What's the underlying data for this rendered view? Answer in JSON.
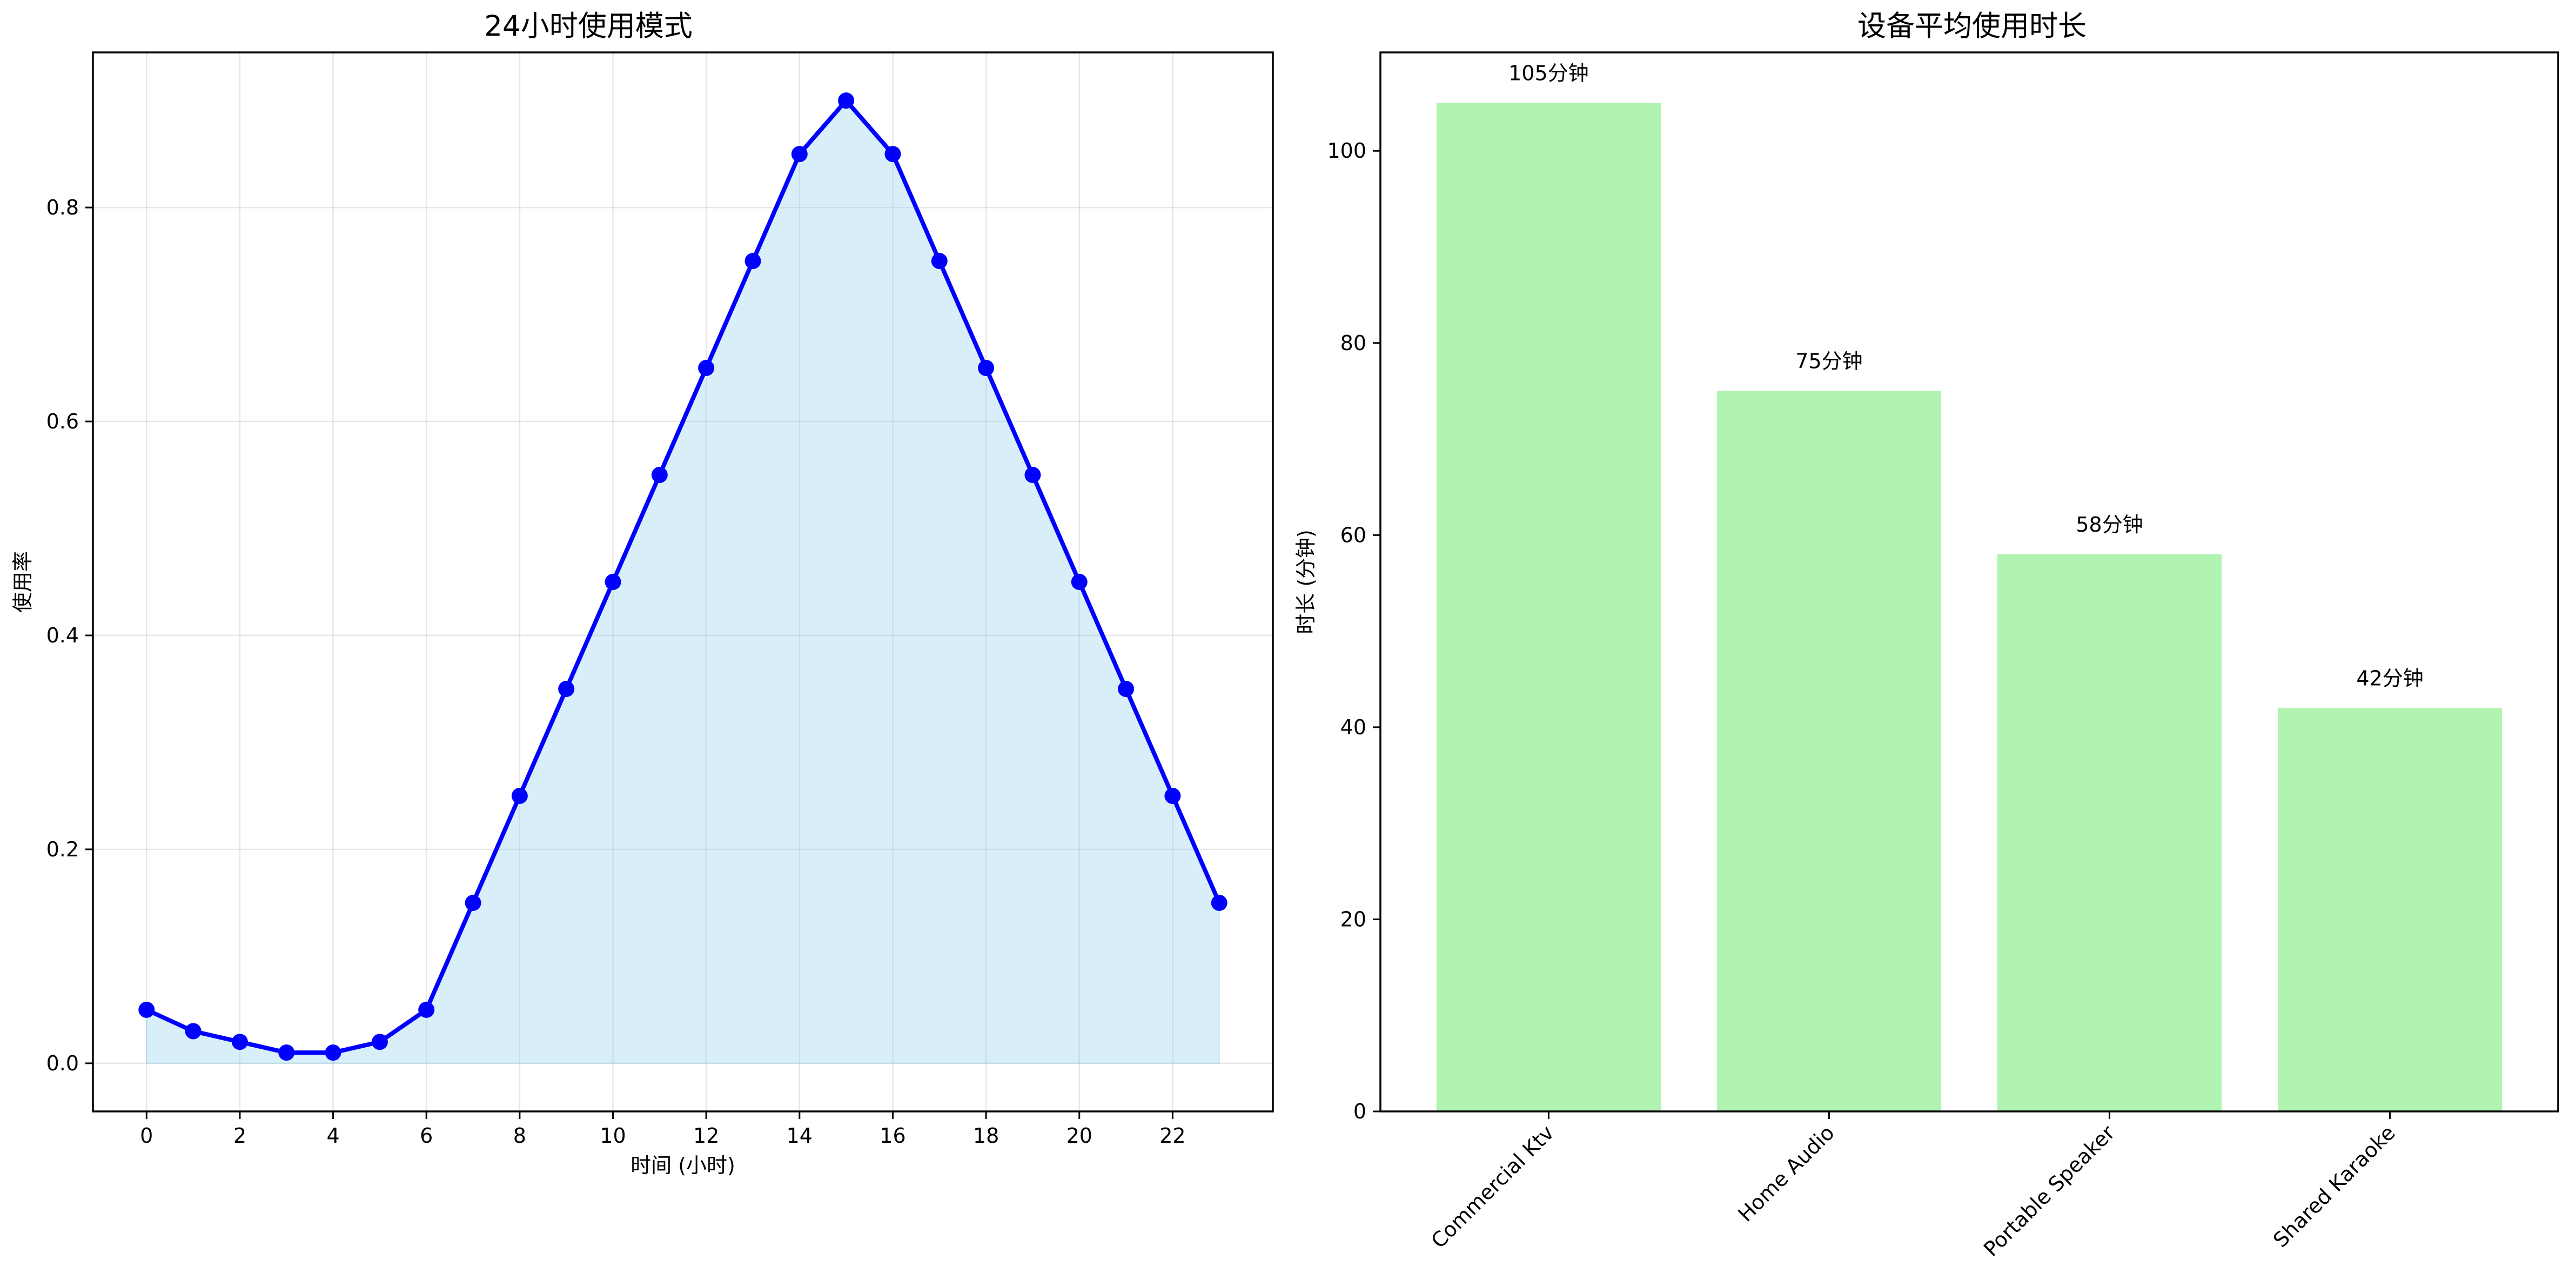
{
  "chart_data": [
    {
      "type": "area",
      "title": "24小时使用模式",
      "xlabel": "时间 (小时)",
      "ylabel": "使用率",
      "x": [
        0,
        1,
        2,
        3,
        4,
        5,
        6,
        7,
        8,
        9,
        10,
        11,
        12,
        13,
        14,
        15,
        16,
        17,
        18,
        19,
        20,
        21,
        22,
        23
      ],
      "values": [
        0.05,
        0.03,
        0.02,
        0.01,
        0.01,
        0.02,
        0.05,
        0.15,
        0.25,
        0.35,
        0.45,
        0.55,
        0.65,
        0.75,
        0.85,
        0.9,
        0.85,
        0.75,
        0.65,
        0.55,
        0.45,
        0.35,
        0.25,
        0.15
      ],
      "xticks": [
        0,
        2,
        4,
        6,
        8,
        10,
        12,
        14,
        16,
        18,
        20,
        22
      ],
      "yticks": [
        0.0,
        0.2,
        0.4,
        0.6,
        0.8
      ],
      "xlim": [
        -1.15,
        24.15
      ],
      "ylim": [
        -0.045,
        0.945
      ],
      "grid": true,
      "line_color": "#0000ff",
      "fill_color": "#87ceeb"
    },
    {
      "type": "bar",
      "title": "设备平均使用时长",
      "xlabel": "",
      "ylabel": "时长 (分钟)",
      "categories": [
        "Commercial Ktv",
        "Home Audio",
        "Portable Speaker",
        "Shared Karaoke"
      ],
      "values": [
        105,
        75,
        58,
        42
      ],
      "data_labels": [
        "105分钟",
        "75分钟",
        "58分钟",
        "42分钟"
      ],
      "yticks": [
        0,
        20,
        40,
        60,
        80,
        100
      ],
      "ylim": [
        0,
        110.25
      ],
      "grid": false,
      "bar_color": "#90ee90"
    }
  ]
}
